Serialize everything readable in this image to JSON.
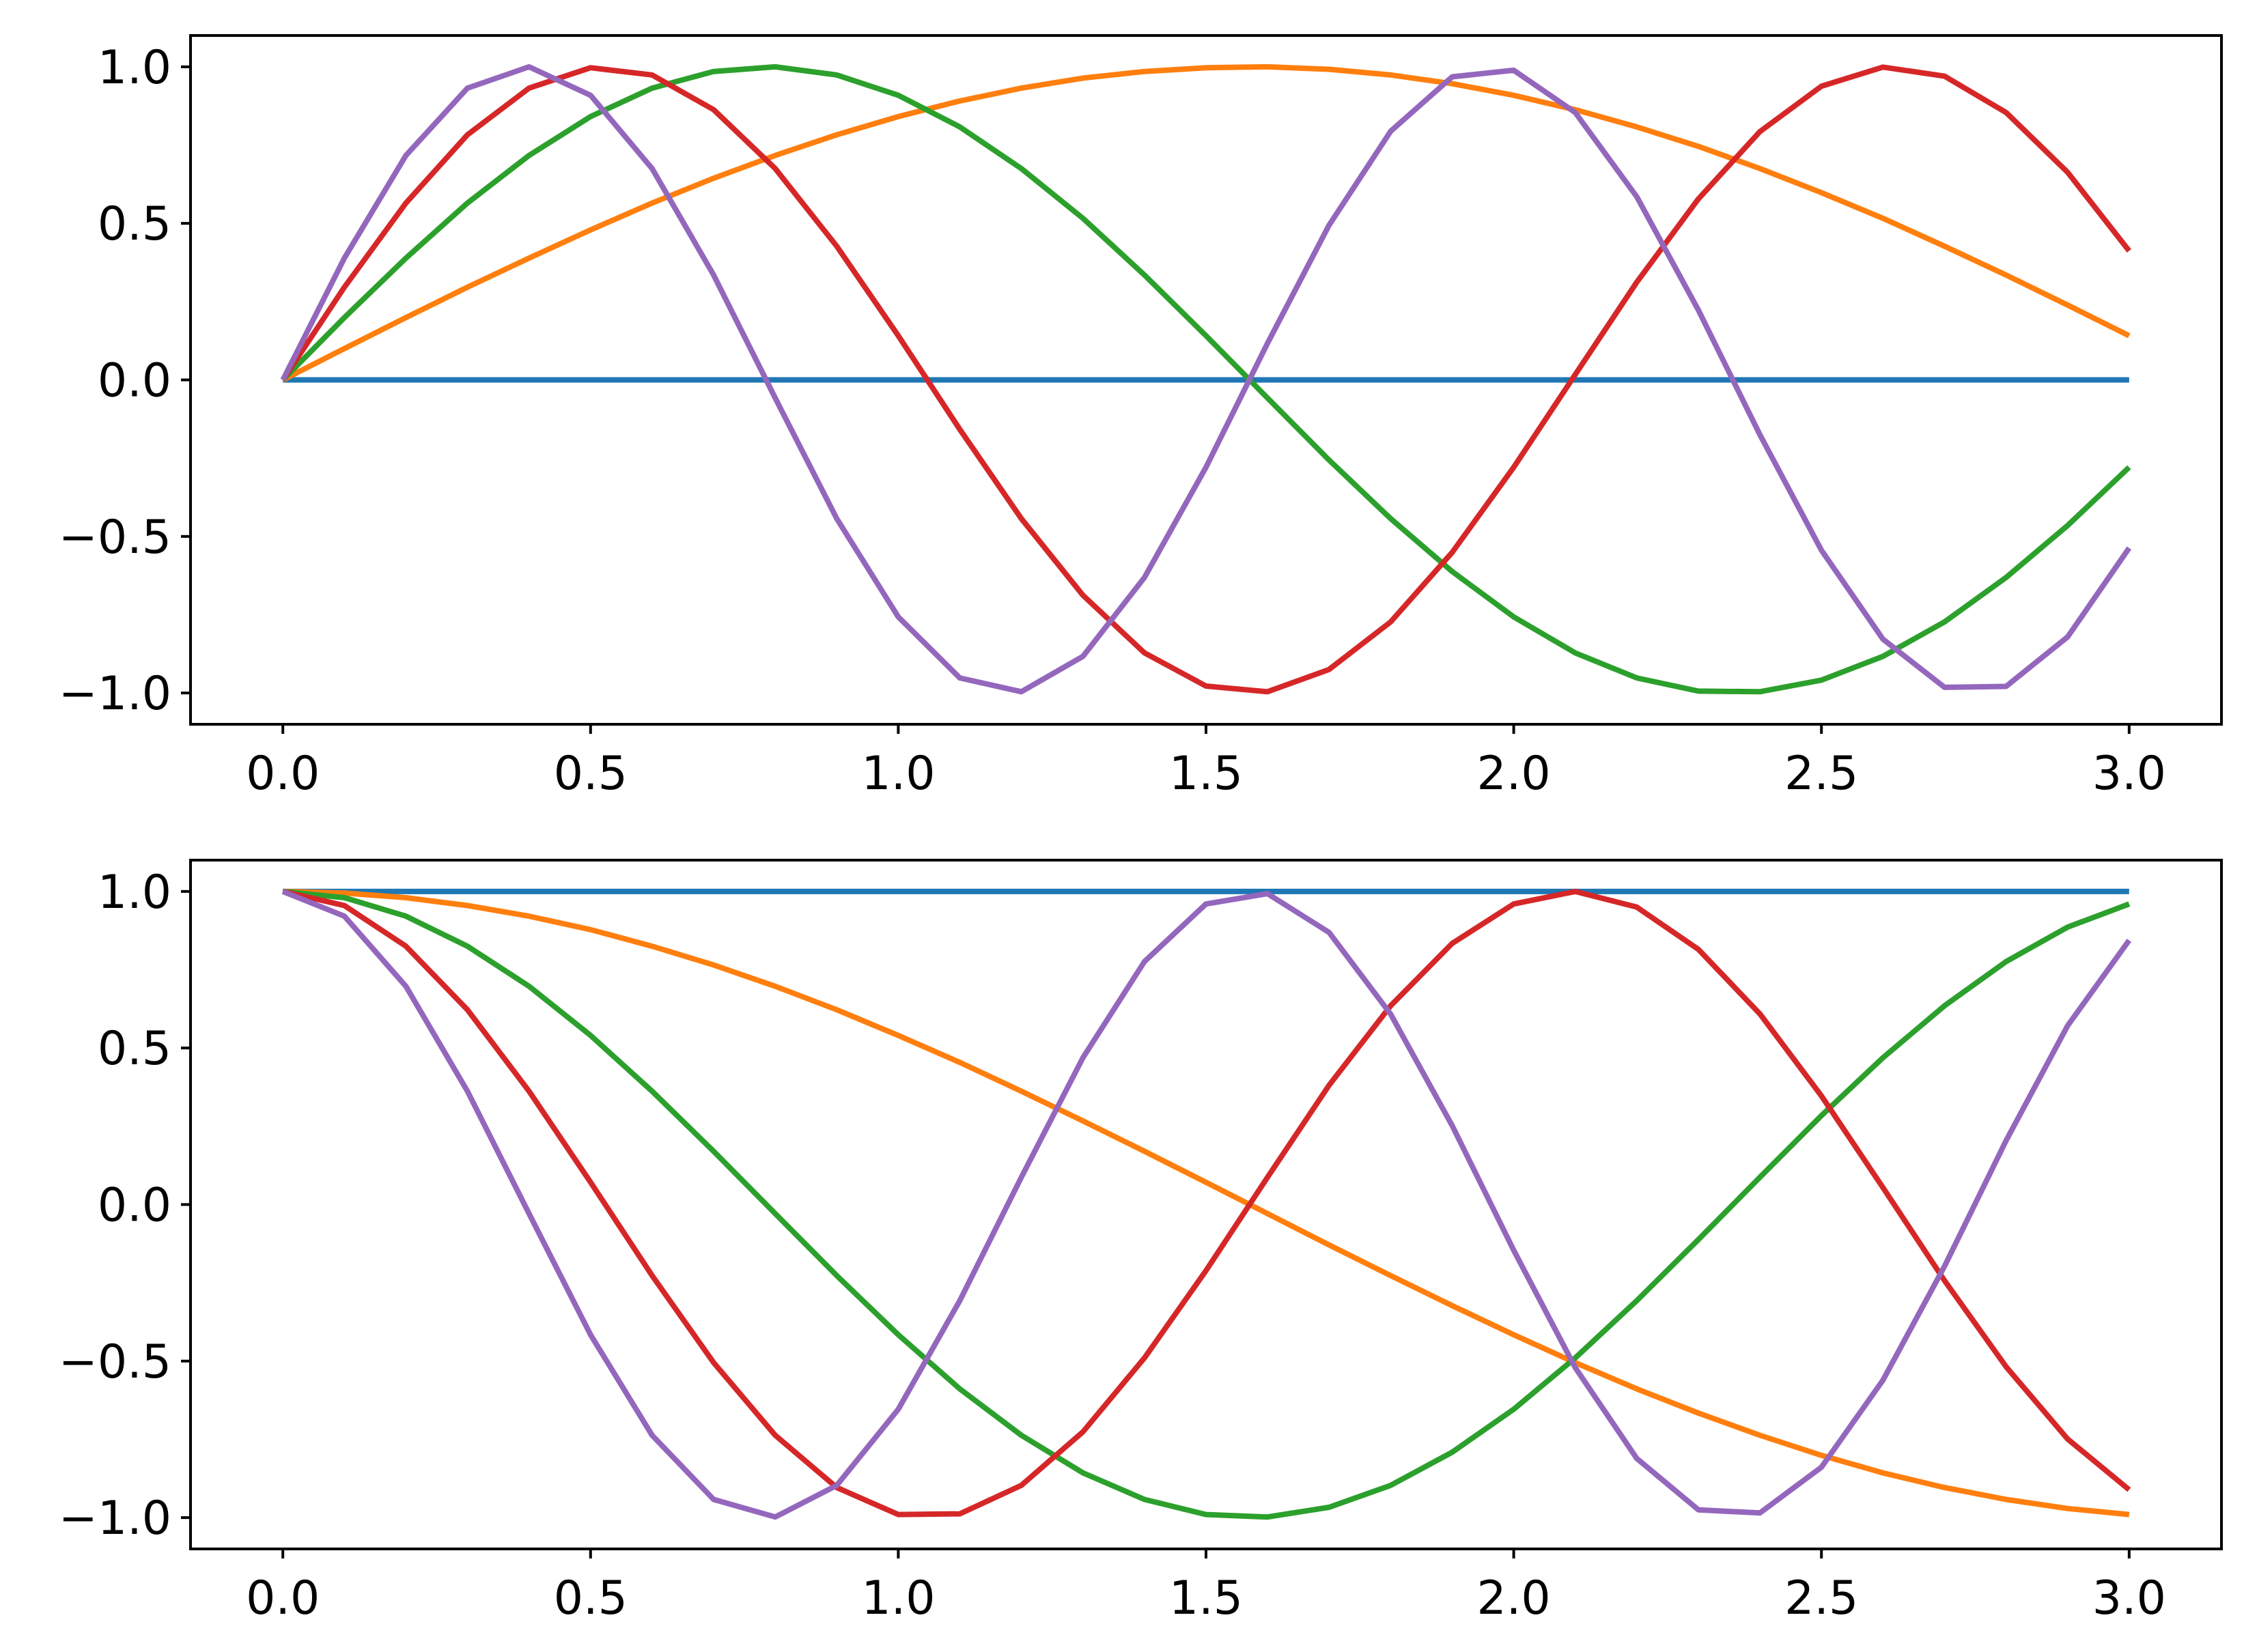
{
  "chart_data": [
    {
      "type": "line",
      "xlim": [
        -0.15,
        3.15
      ],
      "ylim": [
        -1.1,
        1.1
      ],
      "x_ticks": [
        {
          "value": 0.0,
          "label": "0.0"
        },
        {
          "value": 0.5,
          "label": "0.5"
        },
        {
          "value": 1.0,
          "label": "1.0"
        },
        {
          "value": 1.5,
          "label": "1.5"
        },
        {
          "value": 2.0,
          "label": "2.0"
        },
        {
          "value": 2.5,
          "label": "2.5"
        },
        {
          "value": 3.0,
          "label": "3.0"
        }
      ],
      "y_ticks": [
        {
          "value": 1.0,
          "label": "1.0"
        },
        {
          "value": 0.5,
          "label": "0.5"
        },
        {
          "value": 0.0,
          "label": "0.0"
        },
        {
          "value": -0.5,
          "label": "−0.5"
        },
        {
          "value": -1.0,
          "label": "−1.0"
        }
      ],
      "grid": false,
      "x": [
        0.0,
        0.1,
        0.2,
        0.3,
        0.4,
        0.5,
        0.6,
        0.7,
        0.8,
        0.9,
        1.0,
        1.1,
        1.2,
        1.3,
        1.4,
        1.5,
        1.6,
        1.7,
        1.8,
        1.9,
        2.0,
        2.1,
        2.2,
        2.3,
        2.4,
        2.5,
        2.6,
        2.7,
        2.8,
        2.9,
        3.0
      ],
      "series": [
        {
          "color": "#1f77b4",
          "values": [
            0.0,
            0.0,
            0.0,
            0.0,
            0.0,
            0.0,
            0.0,
            0.0,
            0.0,
            0.0,
            0.0,
            0.0,
            0.0,
            0.0,
            0.0,
            0.0,
            0.0,
            0.0,
            0.0,
            0.0,
            0.0,
            0.0,
            0.0,
            0.0,
            0.0,
            0.0,
            0.0,
            0.0,
            0.0,
            0.0,
            0.0
          ]
        },
        {
          "color": "#ff7f0e",
          "values": [
            0.0,
            0.1,
            0.199,
            0.296,
            0.389,
            0.479,
            0.565,
            0.644,
            0.717,
            0.783,
            0.841,
            0.891,
            0.932,
            0.964,
            0.985,
            0.997,
            1.0,
            0.992,
            0.974,
            0.946,
            0.909,
            0.863,
            0.808,
            0.746,
            0.675,
            0.598,
            0.516,
            0.427,
            0.335,
            0.239,
            0.141
          ]
        },
        {
          "color": "#2ca02c",
          "values": [
            0.0,
            0.199,
            0.389,
            0.565,
            0.717,
            0.841,
            0.932,
            0.985,
            1.0,
            0.974,
            0.909,
            0.808,
            0.675,
            0.516,
            0.335,
            0.141,
            -0.058,
            -0.256,
            -0.443,
            -0.612,
            -0.757,
            -0.872,
            -0.952,
            -0.994,
            -0.996,
            -0.959,
            -0.883,
            -0.773,
            -0.631,
            -0.465,
            -0.279
          ]
        },
        {
          "color": "#d62728",
          "values": [
            0.0,
            0.296,
            0.565,
            0.783,
            0.932,
            0.997,
            0.974,
            0.863,
            0.675,
            0.427,
            0.141,
            -0.158,
            -0.443,
            -0.688,
            -0.872,
            -0.978,
            -0.996,
            -0.925,
            -0.773,
            -0.551,
            -0.279,
            0.017,
            0.312,
            0.578,
            0.793,
            0.938,
            0.999,
            0.97,
            0.854,
            0.663,
            0.412
          ]
        },
        {
          "color": "#9467bd",
          "values": [
            0.0,
            0.389,
            0.717,
            0.932,
            1.0,
            0.909,
            0.675,
            0.335,
            -0.058,
            -0.443,
            -0.757,
            -0.952,
            -0.996,
            -0.883,
            -0.631,
            -0.279,
            0.117,
            0.494,
            0.794,
            0.968,
            0.989,
            0.854,
            0.585,
            0.223,
            -0.175,
            -0.544,
            -0.828,
            -0.982,
            -0.979,
            -0.821,
            -0.537
          ]
        }
      ]
    },
    {
      "type": "line",
      "xlim": [
        -0.15,
        3.15
      ],
      "ylim": [
        -1.1,
        1.1
      ],
      "x_ticks": [
        {
          "value": 0.0,
          "label": "0.0"
        },
        {
          "value": 0.5,
          "label": "0.5"
        },
        {
          "value": 1.0,
          "label": "1.0"
        },
        {
          "value": 1.5,
          "label": "1.5"
        },
        {
          "value": 2.0,
          "label": "2.0"
        },
        {
          "value": 2.5,
          "label": "2.5"
        },
        {
          "value": 3.0,
          "label": "3.0"
        }
      ],
      "y_ticks": [
        {
          "value": 1.0,
          "label": "1.0"
        },
        {
          "value": 0.5,
          "label": "0.5"
        },
        {
          "value": 0.0,
          "label": "0.0"
        },
        {
          "value": -0.5,
          "label": "−0.5"
        },
        {
          "value": -1.0,
          "label": "−1.0"
        }
      ],
      "grid": false,
      "x": [
        0.0,
        0.1,
        0.2,
        0.3,
        0.4,
        0.5,
        0.6,
        0.7,
        0.8,
        0.9,
        1.0,
        1.1,
        1.2,
        1.3,
        1.4,
        1.5,
        1.6,
        1.7,
        1.8,
        1.9,
        2.0,
        2.1,
        2.2,
        2.3,
        2.4,
        2.5,
        2.6,
        2.7,
        2.8,
        2.9,
        3.0
      ],
      "series": [
        {
          "color": "#1f77b4",
          "values": [
            1.0,
            1.0,
            1.0,
            1.0,
            1.0,
            1.0,
            1.0,
            1.0,
            1.0,
            1.0,
            1.0,
            1.0,
            1.0,
            1.0,
            1.0,
            1.0,
            1.0,
            1.0,
            1.0,
            1.0,
            1.0,
            1.0,
            1.0,
            1.0,
            1.0,
            1.0,
            1.0,
            1.0,
            1.0,
            1.0,
            1.0
          ]
        },
        {
          "color": "#ff7f0e",
          "values": [
            1.0,
            0.995,
            0.98,
            0.955,
            0.921,
            0.878,
            0.825,
            0.765,
            0.697,
            0.622,
            0.54,
            0.454,
            0.362,
            0.267,
            0.17,
            0.071,
            -0.029,
            -0.129,
            -0.227,
            -0.323,
            -0.416,
            -0.505,
            -0.589,
            -0.666,
            -0.737,
            -0.801,
            -0.857,
            -0.904,
            -0.942,
            -0.971,
            -0.99
          ]
        },
        {
          "color": "#2ca02c",
          "values": [
            1.0,
            0.98,
            0.921,
            0.825,
            0.697,
            0.54,
            0.362,
            0.17,
            -0.029,
            -0.227,
            -0.416,
            -0.589,
            -0.737,
            -0.857,
            -0.942,
            -0.99,
            -0.998,
            -0.967,
            -0.897,
            -0.791,
            -0.654,
            -0.49,
            -0.307,
            -0.112,
            0.087,
            0.284,
            0.469,
            0.635,
            0.776,
            0.886,
            0.96
          ]
        },
        {
          "color": "#d62728",
          "values": [
            1.0,
            0.955,
            0.825,
            0.622,
            0.362,
            0.071,
            -0.227,
            -0.505,
            -0.737,
            -0.904,
            -0.99,
            -0.988,
            -0.897,
            -0.726,
            -0.49,
            -0.211,
            0.087,
            0.381,
            0.635,
            0.834,
            0.96,
            1.0,
            0.95,
            0.815,
            0.609,
            0.347,
            0.054,
            -0.243,
            -0.518,
            -0.749,
            -0.911
          ]
        },
        {
          "color": "#9467bd",
          "values": [
            1.0,
            0.921,
            0.697,
            0.362,
            -0.029,
            -0.416,
            -0.737,
            -0.942,
            -0.998,
            -0.897,
            -0.654,
            -0.307,
            0.087,
            0.469,
            0.776,
            0.96,
            0.993,
            0.869,
            0.608,
            0.252,
            -0.146,
            -0.521,
            -0.811,
            -0.975,
            -0.985,
            -0.839,
            -0.561,
            -0.197,
            0.204,
            0.571,
            0.844
          ]
        }
      ]
    }
  ]
}
